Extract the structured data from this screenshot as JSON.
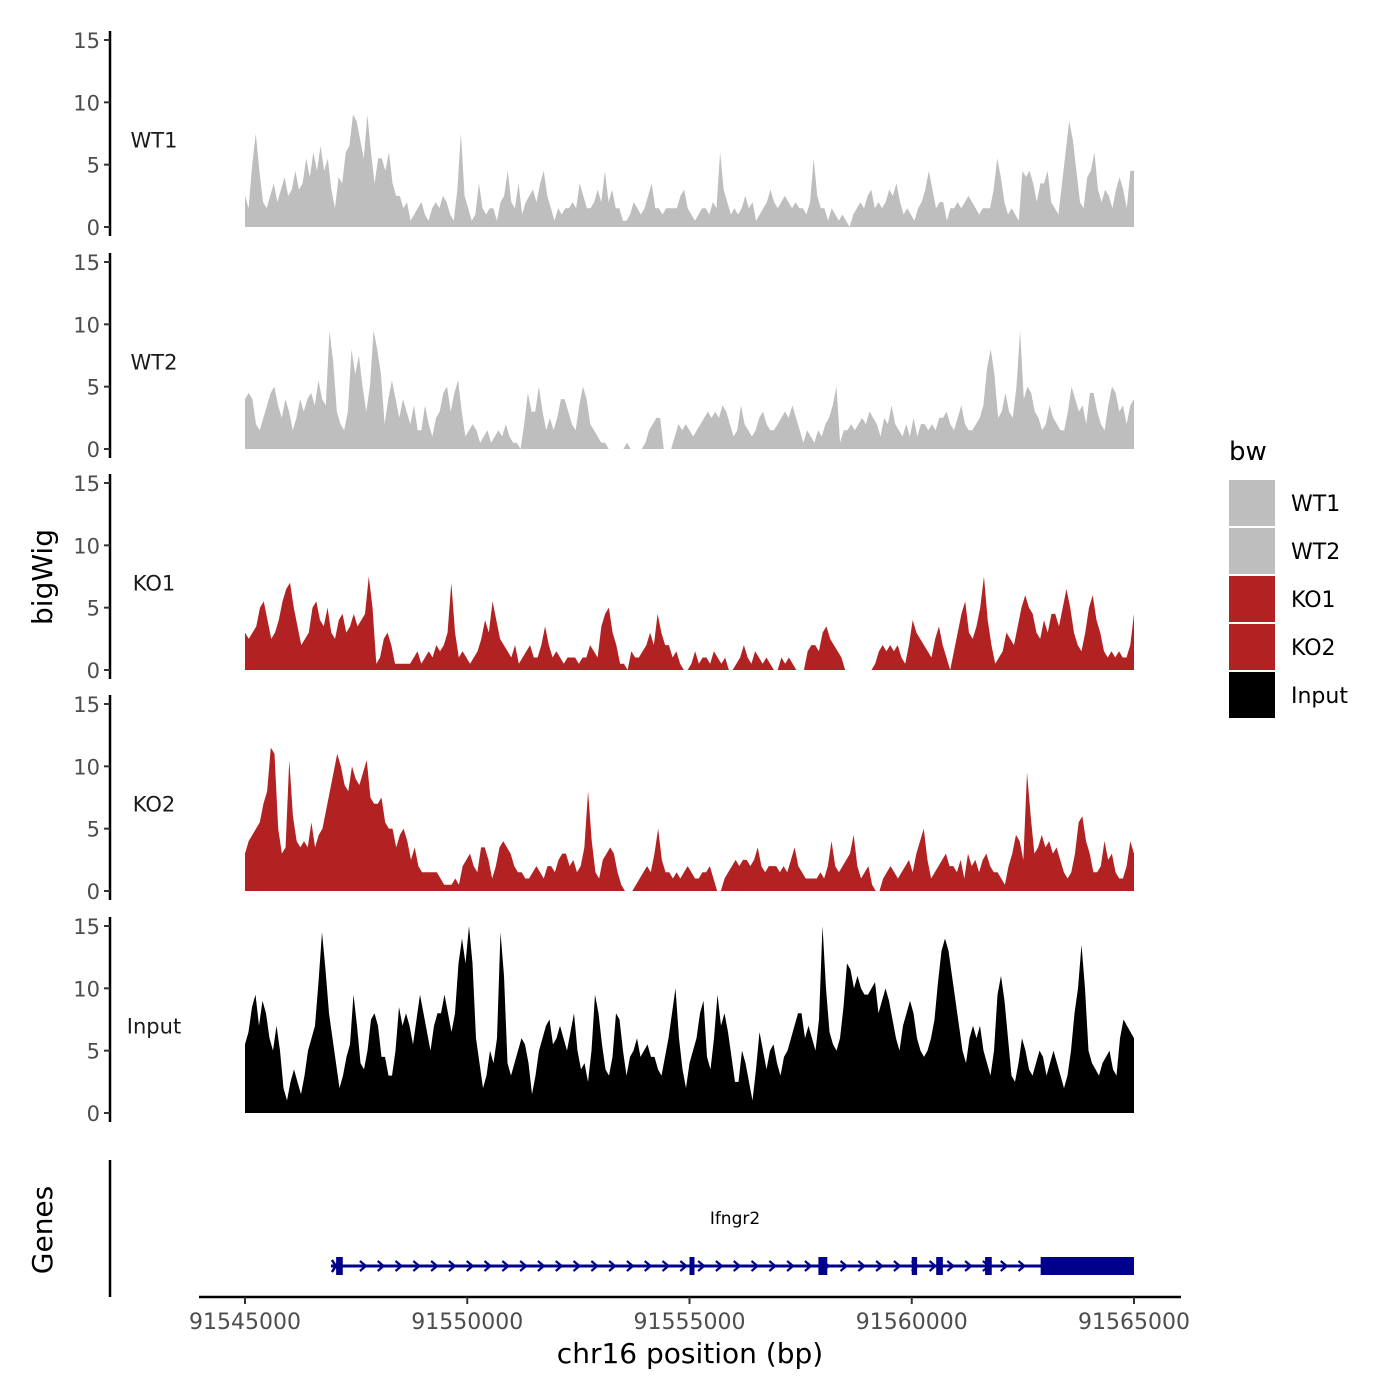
{
  "chart_data": {
    "type": "area",
    "ylabel": "bigWig",
    "xlabel": "chr16 position (bp)",
    "genes_label": "Genes",
    "xlim": [
      91545000,
      91565000
    ],
    "ylim": [
      0,
      15
    ],
    "x_ticks": [
      "91545000",
      "91550000",
      "91555000",
      "91560000",
      "91565000"
    ],
    "x_tick_values": [
      91545000,
      91550000,
      91555000,
      91560000,
      91565000
    ],
    "y_ticks": [
      "0",
      "5",
      "10",
      "15"
    ],
    "y_tick_values": [
      0,
      5,
      10,
      15
    ],
    "legend": {
      "title": "bw",
      "position": "right",
      "entries": [
        {
          "label": "WT1",
          "color": "#bebebe"
        },
        {
          "label": "WT2",
          "color": "#bebebe"
        },
        {
          "label": "KO1",
          "color": "#b22222"
        },
        {
          "label": "KO2",
          "color": "#b22222"
        },
        {
          "label": "Input",
          "color": "#000000"
        }
      ]
    },
    "series": [
      {
        "name": "WT1",
        "color": "#bebebe",
        "x_start": 91545000,
        "x_end": 91565000,
        "values": [
          2.5,
          1.5,
          5,
          7.5,
          4.5,
          2,
          1.5,
          2.5,
          3.5,
          2,
          3,
          4,
          2.5,
          3,
          4.5,
          3,
          3.5,
          5.5,
          4,
          6,
          4.5,
          6.5,
          4.5,
          5.5,
          3,
          1.5,
          4,
          3.5,
          6,
          6.5,
          9,
          8.5,
          7,
          5.5,
          9,
          6,
          3.5,
          5.5,
          5.5,
          4.5,
          6,
          3.5,
          2.5,
          2.5,
          1.5,
          2,
          0.5,
          1,
          1.5,
          2,
          1,
          0.5,
          1.5,
          2,
          1.5,
          2.5,
          2,
          1,
          0.5,
          3,
          7.5,
          2.5,
          1.5,
          0.5,
          1,
          3.5,
          1.5,
          1,
          1.5,
          1.5,
          0.5,
          2,
          2.5,
          4.5,
          2,
          1.5,
          3.5,
          1,
          2,
          2.5,
          3,
          2,
          3.5,
          4.5,
          2.5,
          1.5,
          0.5,
          1.5,
          1,
          1.5,
          1.5,
          2,
          1.5,
          3.5,
          2.5,
          1.5,
          1.5,
          2,
          3,
          2,
          4.5,
          2,
          3,
          1.5,
          1.5,
          0.5,
          0.5,
          1,
          2,
          1.5,
          1,
          1.5,
          2.5,
          3.5,
          1.5,
          1.5,
          1,
          1.5,
          1.5,
          1.5,
          1.5,
          2.5,
          3,
          1.5,
          1,
          0.5,
          1,
          1.5,
          1.5,
          1,
          2,
          1.5,
          6,
          3,
          2,
          1,
          1.5,
          1,
          1.5,
          2.5,
          1.5,
          2,
          0.5,
          1,
          1.5,
          2,
          3,
          2,
          1.5,
          2,
          2.5,
          2,
          1.5,
          2,
          1.5,
          1.5,
          1,
          2,
          5.5,
          2.5,
          1.5,
          1.5,
          0.5,
          1.5,
          1,
          0.5,
          1,
          0.5,
          0,
          1,
          1.5,
          2,
          1.5,
          2.5,
          3,
          1.5,
          2,
          1.5,
          2,
          3,
          2.5,
          3.5,
          2,
          1,
          1.5,
          1,
          0.5,
          1.5,
          2,
          3,
          4.5,
          3,
          1.5,
          2,
          2,
          0.5,
          1.5,
          1.5,
          2,
          1.5,
          2,
          2.5,
          2,
          1.5,
          1,
          1.5,
          1.5,
          1.5,
          3,
          5.5,
          4,
          2,
          1,
          1.5,
          1,
          0.5,
          4.5,
          4,
          4.5,
          3.5,
          2,
          3.5,
          3.5,
          4.5,
          2,
          1.5,
          1,
          3.5,
          6,
          8.5,
          7,
          4.5,
          2,
          1.5,
          4,
          4.5,
          6,
          3,
          2,
          3,
          2.5,
          1.5,
          3,
          4,
          3,
          1.5,
          4.5,
          4.5
        ]
      },
      {
        "name": "WT2",
        "color": "#bebebe",
        "x_start": 91545000,
        "x_end": 91565000,
        "values": [
          4,
          4.5,
          4,
          2,
          1.5,
          2.5,
          3.5,
          4.5,
          5,
          3.5,
          2.5,
          4,
          3,
          1.5,
          2.5,
          4,
          3,
          4,
          4.5,
          3.5,
          5.5,
          4,
          3.5,
          9.5,
          7,
          3,
          2,
          1.5,
          3,
          8,
          6,
          7.5,
          5,
          3,
          5,
          9.5,
          8,
          6,
          2,
          4,
          5.5,
          4,
          2.5,
          4,
          3,
          2,
          3.5,
          1.5,
          1.5,
          3.5,
          2,
          1,
          2.5,
          3,
          4.5,
          5,
          3,
          4.5,
          5.5,
          3,
          1,
          1.5,
          2,
          1.5,
          0.5,
          1,
          1.5,
          0.5,
          1,
          1.5,
          1,
          2,
          1,
          0.5,
          0.5,
          0,
          2,
          4.5,
          3,
          3,
          5,
          3,
          1.5,
          2.5,
          1.5,
          2.5,
          4,
          4,
          3,
          2,
          1.5,
          3.5,
          5,
          4,
          2,
          1.5,
          1,
          0.5,
          0.5,
          0,
          0,
          0,
          0,
          0,
          0.5,
          0,
          0,
          0,
          0,
          0.5,
          1.5,
          2,
          2.5,
          2.5,
          0,
          0,
          0,
          1,
          2,
          1.5,
          2,
          1.5,
          1,
          1.5,
          2,
          2.5,
          3,
          2.5,
          3,
          2.5,
          3.5,
          3,
          2,
          1,
          1.5,
          3.5,
          2,
          1.5,
          1,
          1.5,
          2.5,
          3,
          2,
          1.5,
          1.5,
          2,
          2.5,
          3,
          2.5,
          3.5,
          2.5,
          1.5,
          0.5,
          1.5,
          1,
          0.5,
          1.5,
          1,
          2,
          2.5,
          3.5,
          5,
          0.5,
          1.5,
          1.5,
          2,
          1.5,
          2,
          2.5,
          2,
          3,
          2.5,
          2,
          1,
          2.5,
          2,
          3.5,
          2,
          1.5,
          1,
          2,
          1,
          2.5,
          1,
          2,
          2,
          1.5,
          2,
          1.5,
          2.5,
          2.5,
          3,
          2,
          1.5,
          2.5,
          3.5,
          2,
          1.5,
          1.5,
          2,
          2.5,
          3.5,
          6.5,
          8,
          6,
          2.5,
          3,
          4.5,
          3,
          2.5,
          5,
          9.5,
          4,
          5,
          4.5,
          3,
          2.5,
          1.5,
          2,
          3.5,
          2.5,
          2,
          1.5,
          1.5,
          3,
          5,
          4,
          3,
          3.5,
          2,
          4.5,
          4.5,
          3,
          2,
          1.5,
          3.5,
          5,
          4.5,
          3,
          3.5,
          2,
          3.5,
          4
        ]
      },
      {
        "name": "KO1",
        "color": "#b22222",
        "x_start": 91545000,
        "x_end": 91565000,
        "values": [
          3,
          2.5,
          3,
          3.5,
          5,
          5.5,
          4,
          2.5,
          3,
          4,
          5.5,
          6.5,
          7,
          5,
          3.5,
          2,
          2.5,
          3,
          5,
          5.5,
          4,
          3.5,
          5,
          3,
          2.5,
          4,
          4.5,
          3,
          3.5,
          4.5,
          3.5,
          4,
          4.5,
          7.5,
          5,
          0.5,
          1,
          2.5,
          3,
          2,
          0.5,
          0.5,
          0.5,
          0.5,
          0.5,
          1,
          1.5,
          0.5,
          1,
          1.5,
          1,
          2,
          1.5,
          2,
          3,
          7,
          3,
          1,
          1.5,
          1,
          0.5,
          1,
          1.5,
          2.5,
          4,
          3,
          5.5,
          4,
          2.5,
          2,
          1.5,
          1,
          2,
          0.5,
          1,
          1.5,
          2,
          1,
          1,
          2,
          3.5,
          2,
          1,
          1.5,
          1,
          0.5,
          1,
          1,
          1,
          0.5,
          1,
          1,
          2,
          1.5,
          1,
          3.5,
          4.5,
          5,
          3,
          2,
          0.5,
          0.5,
          0,
          1.5,
          1,
          1,
          1.5,
          2,
          3,
          2,
          4.5,
          3,
          2,
          2,
          1,
          1.5,
          0.5,
          0,
          0,
          0.5,
          1.5,
          0.5,
          1,
          1,
          0.5,
          1.5,
          1,
          0.5,
          1,
          0,
          0,
          0.5,
          1,
          2,
          1,
          0.5,
          1.5,
          1,
          0.5,
          1,
          0.5,
          0,
          0,
          1,
          0.5,
          1,
          0.5,
          0,
          0,
          0,
          1.5,
          2,
          2,
          1.5,
          3,
          3.5,
          2.5,
          2,
          1.5,
          1,
          0,
          0,
          0,
          0,
          0,
          0,
          0,
          0,
          0.5,
          1.5,
          2,
          1.5,
          2,
          1.5,
          2,
          1,
          0.5,
          2,
          4,
          3,
          2.5,
          2,
          1.5,
          1,
          2.5,
          3.5,
          2,
          1,
          0,
          1.5,
          3,
          4.5,
          5.5,
          3,
          2.5,
          3.5,
          5,
          7.5,
          4,
          2,
          0.5,
          1,
          1.5,
          3,
          2.5,
          2,
          3.5,
          5,
          6,
          5,
          4.5,
          3,
          2.5,
          4,
          3,
          4.5,
          4.5,
          3.5,
          5,
          6.5,
          5,
          3,
          2,
          1.5,
          3,
          5,
          6,
          4,
          3,
          1.5,
          1,
          1.5,
          1,
          1.5,
          1,
          1,
          2,
          4.5
        ]
      },
      {
        "name": "KO2",
        "color": "#b22222",
        "x_start": 91545000,
        "x_end": 91565000,
        "values": [
          3,
          4,
          4.5,
          5,
          5.5,
          7,
          8,
          11.5,
          11,
          5,
          3,
          3.5,
          10.5,
          6,
          4,
          3.5,
          4,
          3.5,
          5.5,
          3.5,
          4.5,
          5,
          6.5,
          8,
          9.5,
          11,
          10,
          8.5,
          8,
          10,
          9,
          8.5,
          9.5,
          10.5,
          7.5,
          7,
          7,
          7.5,
          5.5,
          5,
          5,
          3.5,
          4.5,
          5,
          4,
          2.5,
          3.5,
          2,
          1.5,
          1.5,
          1.5,
          1.5,
          1.5,
          1,
          0.5,
          0.5,
          0.5,
          1,
          0.5,
          2,
          2.5,
          3,
          2,
          1.5,
          3.5,
          3.5,
          2.5,
          1,
          2,
          3.5,
          4,
          3.5,
          3,
          2,
          1.5,
          1.5,
          1,
          1,
          1.5,
          2,
          1.5,
          1,
          2,
          2,
          1.5,
          2.5,
          3,
          3,
          2,
          2.5,
          1.5,
          2,
          3.5,
          8,
          4,
          1.5,
          1,
          2.5,
          3,
          3.5,
          3,
          1.5,
          0.5,
          0,
          0,
          0,
          0.5,
          1,
          1.5,
          2,
          1.5,
          3,
          5,
          2.5,
          1.5,
          1.5,
          1,
          1.5,
          1,
          1.5,
          2,
          1.5,
          1,
          1,
          1.5,
          1.5,
          2,
          1,
          0,
          0,
          1,
          1.5,
          2,
          2.5,
          2,
          2.5,
          2.5,
          2,
          2.5,
          3.5,
          2,
          1.5,
          2,
          2,
          2,
          1.5,
          2,
          1.5,
          2.5,
          3.5,
          2,
          1.5,
          1,
          1,
          1,
          1,
          1.5,
          1,
          2,
          4,
          2,
          1.5,
          2,
          2.5,
          3,
          4.5,
          2,
          1,
          1.5,
          2,
          0.5,
          0,
          0,
          1,
          1.5,
          2,
          1.5,
          1,
          1.5,
          2,
          2.5,
          1.5,
          3,
          4,
          5,
          2.5,
          1,
          1.5,
          2,
          2.5,
          3,
          2,
          2,
          1.5,
          2.5,
          1,
          3,
          2,
          2.5,
          1.5,
          2.5,
          3,
          2,
          1.5,
          1.5,
          1,
          0.5,
          2,
          3,
          4.5,
          4,
          2.5,
          9.5,
          6,
          3,
          3.5,
          4.5,
          3.5,
          4,
          3,
          3.5,
          2.5,
          1.5,
          1,
          1.5,
          3,
          5.5,
          6,
          4,
          3,
          1.5,
          1.5,
          2,
          4,
          2.5,
          3,
          1.5,
          1,
          1,
          2,
          4,
          3
        ]
      },
      {
        "name": "Input",
        "color": "#000000",
        "x_start": 91545000,
        "x_end": 91565000,
        "values": [
          5.5,
          6.5,
          8.5,
          9.5,
          7,
          9,
          8,
          6,
          5,
          7,
          5,
          2,
          1,
          2.5,
          3.5,
          2.5,
          1.5,
          3,
          5,
          6,
          7,
          10.5,
          14.5,
          11.5,
          8,
          6,
          4,
          2,
          3,
          4.5,
          5.5,
          9.5,
          7,
          4,
          3.5,
          5,
          7.5,
          8,
          7,
          4.5,
          4.5,
          3,
          3,
          5,
          8.5,
          7,
          8,
          7,
          5.5,
          7.5,
          9.5,
          8,
          6.5,
          5,
          7,
          8,
          8,
          9.5,
          8,
          6.5,
          8,
          12,
          14,
          12,
          15,
          12,
          6,
          4,
          2,
          3,
          5,
          4,
          6,
          14.5,
          11,
          4,
          3,
          4,
          5,
          6,
          5.5,
          4,
          1.5,
          3,
          5,
          6,
          7,
          7.5,
          5.5,
          6,
          7,
          6,
          5,
          6.5,
          8,
          5,
          3.5,
          4,
          2.5,
          5,
          9.5,
          8,
          5.5,
          3.5,
          3,
          4.5,
          8,
          7.5,
          5,
          3,
          4.5,
          5,
          6,
          4.5,
          5,
          5.5,
          4.5,
          4.5,
          3.5,
          3,
          4.5,
          6,
          8,
          10,
          6,
          3.5,
          2,
          4,
          5,
          6,
          8,
          9,
          4.5,
          3.5,
          6,
          9.5,
          7,
          8,
          6.5,
          4.5,
          2.5,
          2.5,
          5,
          4,
          2.5,
          1,
          3.5,
          6.5,
          5,
          3.5,
          5,
          5.5,
          4,
          3,
          4.5,
          5,
          6,
          7,
          8,
          8,
          6,
          7,
          6,
          5,
          7.5,
          15,
          10,
          6.5,
          5.5,
          5,
          6,
          8.5,
          12,
          11.5,
          10,
          11,
          10,
          9.5,
          9.5,
          10,
          10.5,
          8,
          9,
          10,
          9,
          7.5,
          6,
          5,
          7,
          8,
          9,
          8,
          6,
          5,
          4.5,
          5,
          6,
          7.5,
          10.5,
          13,
          14,
          13,
          11,
          9,
          7,
          5,
          4,
          6,
          7,
          6,
          7,
          5,
          4,
          3,
          5,
          9.5,
          11,
          9,
          6,
          3,
          2.5,
          4,
          6,
          5,
          3.5,
          3,
          4,
          5,
          4.5,
          3,
          4,
          5,
          4,
          3,
          2,
          3,
          5,
          8,
          10,
          13.5,
          10,
          5,
          4,
          3.5,
          3,
          4,
          4.5,
          5,
          3.5,
          3,
          6,
          7.5,
          7,
          6.5,
          6
        ]
      }
    ],
    "gene_track": {
      "gene_name": "Ifngr2",
      "strand": "+",
      "start": 91547000,
      "end": 91565000,
      "exons": [
        [
          91547050,
          91547200
        ],
        [
          91555000,
          91555100
        ],
        [
          91557900,
          91558100
        ],
        [
          91560000,
          91560120
        ],
        [
          91560550,
          91560700
        ],
        [
          91561650,
          91561800
        ],
        [
          91562900,
          91565000
        ]
      ]
    }
  }
}
